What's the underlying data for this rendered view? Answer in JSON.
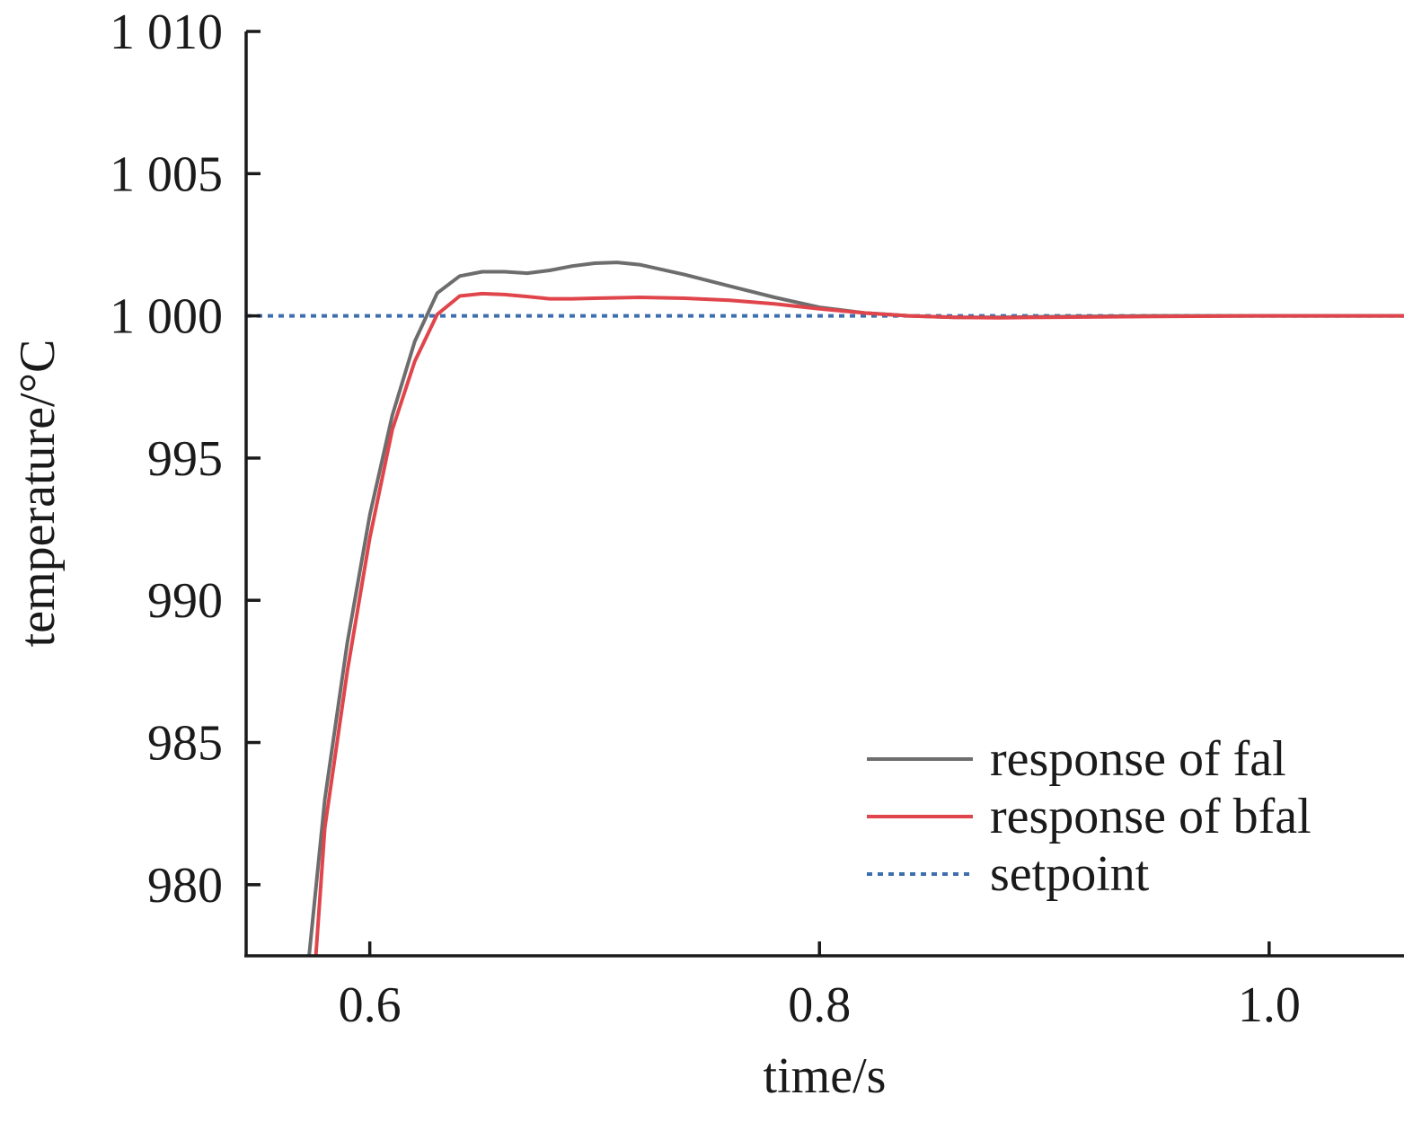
{
  "chart_data": {
    "type": "line",
    "xlabel": "time/s",
    "ylabel": "temperature/°C",
    "xlim": [
      0.545,
      1.06
    ],
    "ylim": [
      977.5,
      1010
    ],
    "xticks": [
      {
        "value": 0.6,
        "label": "0.6"
      },
      {
        "value": 0.8,
        "label": "0.8"
      },
      {
        "value": 1.0,
        "label": "1.0"
      }
    ],
    "yticks": [
      {
        "value": 1010,
        "label": "1 010"
      },
      {
        "value": 1005,
        "label": "1 005"
      },
      {
        "value": 1000,
        "label": "1 000"
      },
      {
        "value": 995,
        "label": "995"
      },
      {
        "value": 990,
        "label": "990"
      },
      {
        "value": 985,
        "label": "985"
      },
      {
        "value": 980,
        "label": "980"
      }
    ],
    "legend_position": "bottom-right",
    "grid": false,
    "series": [
      {
        "name": "response of fal",
        "color": "#6d6d6d",
        "style": "solid",
        "x": [
          0.573,
          0.58,
          0.59,
          0.6,
          0.61,
          0.62,
          0.63,
          0.64,
          0.65,
          0.66,
          0.67,
          0.68,
          0.69,
          0.7,
          0.71,
          0.72,
          0.74,
          0.76,
          0.78,
          0.8,
          0.82,
          0.84,
          0.86,
          0.88,
          0.9,
          0.95,
          1.0,
          1.06
        ],
        "y": [
          977.5,
          983.0,
          988.5,
          993.0,
          996.5,
          999.1,
          1000.8,
          1001.4,
          1001.55,
          1001.55,
          1001.5,
          1001.6,
          1001.75,
          1001.85,
          1001.88,
          1001.8,
          1001.45,
          1001.05,
          1000.65,
          1000.3,
          1000.1,
          1000.0,
          999.95,
          999.95,
          999.97,
          1000.0,
          1000.0,
          1000.0
        ]
      },
      {
        "name": "response of bfal",
        "color": "#e0454b",
        "style": "solid",
        "x": [
          0.576,
          0.58,
          0.59,
          0.6,
          0.61,
          0.62,
          0.63,
          0.64,
          0.65,
          0.66,
          0.67,
          0.68,
          0.69,
          0.7,
          0.72,
          0.74,
          0.76,
          0.78,
          0.8,
          0.82,
          0.84,
          0.86,
          0.88,
          0.9,
          0.95,
          1.0,
          1.06
        ],
        "y": [
          977.5,
          982.0,
          987.5,
          992.2,
          996.0,
          998.4,
          1000.05,
          1000.7,
          1000.78,
          1000.75,
          1000.68,
          1000.6,
          1000.6,
          1000.62,
          1000.65,
          1000.62,
          1000.55,
          1000.42,
          1000.25,
          1000.1,
          1000.0,
          999.95,
          999.93,
          999.95,
          999.98,
          1000.0,
          1000.0
        ]
      },
      {
        "name": "setpoint",
        "color": "#3d6fae",
        "style": "dotted",
        "x": [
          0.545,
          1.06
        ],
        "y": [
          1000,
          1000
        ]
      }
    ]
  }
}
